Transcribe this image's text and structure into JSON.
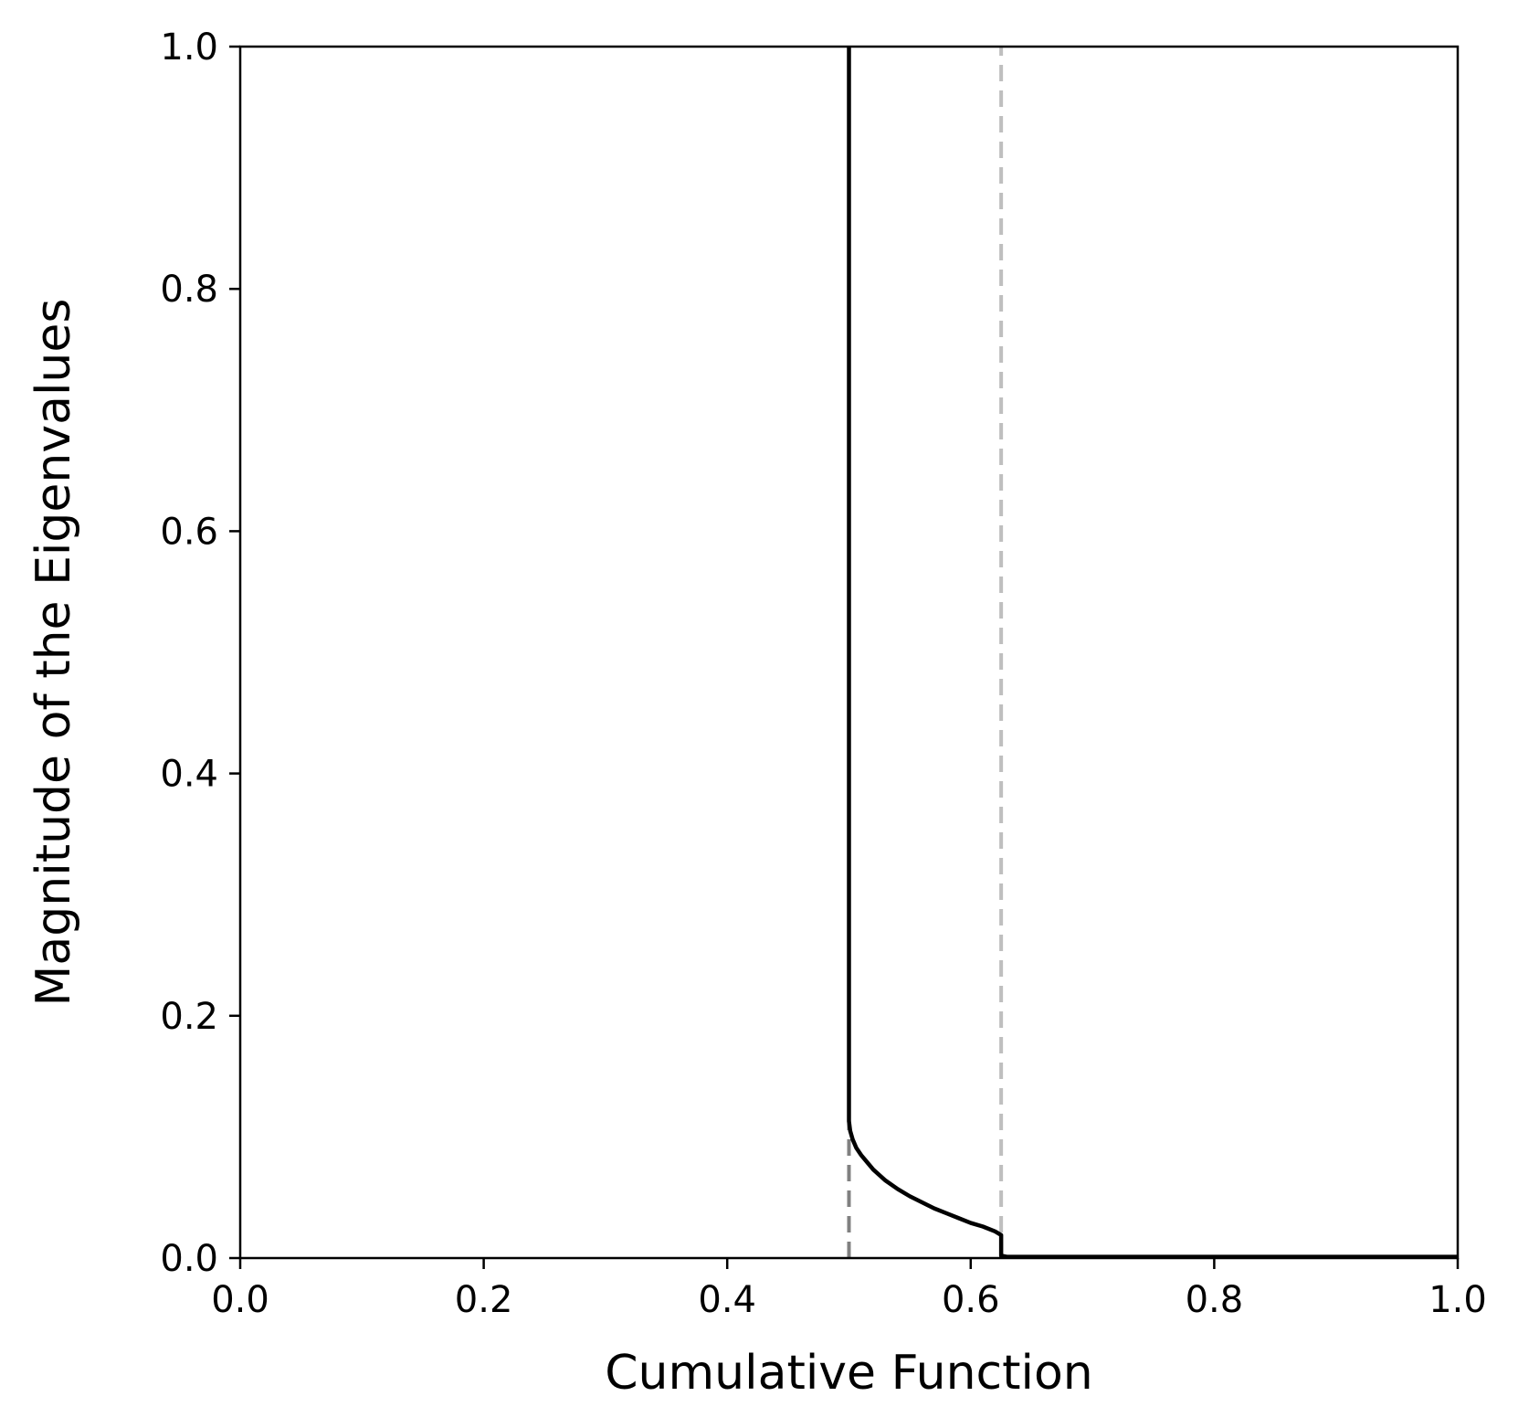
{
  "chart_data": {
    "type": "line",
    "title": "",
    "xlabel": "Cumulative Function",
    "ylabel": "Magnitude of the Eigenvalues",
    "xlim": [
      0.0,
      1.0
    ],
    "ylim": [
      0.0,
      1.0
    ],
    "xticks": [
      "0.0",
      "0.2",
      "0.4",
      "0.6",
      "0.8",
      "1.0"
    ],
    "yticks": [
      "0.0",
      "0.2",
      "0.4",
      "0.6",
      "0.8",
      "1.0"
    ],
    "grid": false,
    "legend": null,
    "series": [
      {
        "color": "#000000",
        "style": "solid",
        "x": [
          0.5,
          0.5,
          0.5,
          0.501,
          0.503,
          0.506,
          0.51,
          0.515,
          0.52,
          0.53,
          0.54,
          0.55,
          0.56,
          0.57,
          0.58,
          0.59,
          0.6,
          0.61,
          0.62,
          0.625,
          0.625,
          0.63,
          0.7,
          0.8,
          0.9,
          1.0
        ],
        "y": [
          1.0,
          0.5,
          0.113,
          0.105,
          0.098,
          0.091,
          0.085,
          0.079,
          0.073,
          0.064,
          0.057,
          0.051,
          0.046,
          0.041,
          0.037,
          0.033,
          0.029,
          0.026,
          0.022,
          0.019,
          0.002,
          0.001,
          0.001,
          0.001,
          0.001,
          0.001
        ]
      }
    ],
    "vlines": [
      {
        "x": 0.5,
        "y_range": [
          0.0,
          0.113
        ],
        "color": "#808080",
        "style": "dashed"
      },
      {
        "x": 0.625,
        "y_range": [
          0.0,
          1.0
        ],
        "color": "#bfbfbf",
        "style": "dashed"
      }
    ]
  }
}
